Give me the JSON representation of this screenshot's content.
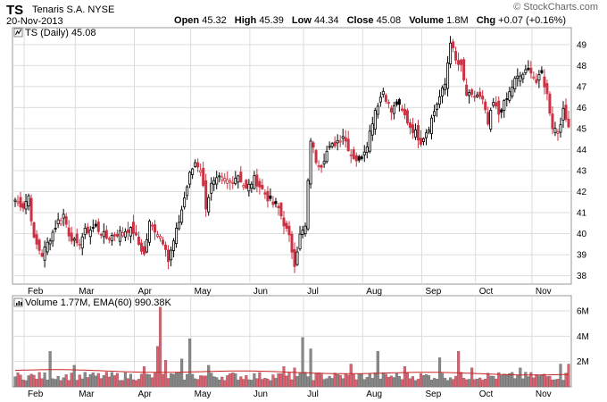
{
  "header": {
    "symbol": "TS",
    "company": "Tenaris S.A. NYSE",
    "date": "20-Nov-2013",
    "logo": "© StockCharts.com",
    "open_label": "Open",
    "open": "45.32",
    "high_label": "High",
    "high": "45.39",
    "low_label": "Low",
    "low": "44.34",
    "close_label": "Close",
    "close": "45.08",
    "volume_label": "Volume",
    "volume": "1.8M",
    "chg_label": "Chg",
    "chg": "+0.07 (+0.16%)"
  },
  "price_legend": "TS (Daily) 45.08",
  "volume_legend": "Volume 1.77M, EMA(60) 990.38K",
  "colors": {
    "up": "#000000",
    "down": "#cc3344",
    "vol_up": "#888888",
    "vol_down": "#e06070",
    "ema": "#cc2222",
    "grid": "#dddddd"
  },
  "chart_data": [
    {
      "type": "candlestick",
      "title": "TS (Daily) 45.08",
      "ylim": [
        37.6,
        49.8
      ],
      "y_ticks": [
        38,
        39,
        40,
        41,
        42,
        43,
        44,
        45,
        46,
        47,
        48,
        49
      ],
      "month_labels": [
        "Feb",
        "Mar",
        "Apr",
        "May",
        "Jun",
        "Jul",
        "Aug",
        "Sep",
        "Oct",
        "Nov"
      ],
      "month_start_index": [
        6,
        25,
        47,
        68,
        90,
        110,
        132,
        154,
        174,
        195
      ],
      "last_close": 45.08,
      "anchors": [
        [
          0,
          41.6
        ],
        [
          3,
          41.3
        ],
        [
          5,
          41.8
        ],
        [
          7,
          39.7
        ],
        [
          10,
          39.0
        ],
        [
          13,
          39.8
        ],
        [
          16,
          40.6
        ],
        [
          18,
          40.9
        ],
        [
          20,
          40.0
        ],
        [
          23,
          39.4
        ],
        [
          26,
          40.1
        ],
        [
          30,
          40.3
        ],
        [
          34,
          39.8
        ],
        [
          38,
          40.0
        ],
        [
          42,
          40.2
        ],
        [
          44,
          40.1
        ],
        [
          46,
          39.5
        ],
        [
          48,
          39.0
        ],
        [
          50,
          40.5
        ],
        [
          52,
          40.2
        ],
        [
          54,
          39.9
        ],
        [
          56,
          39.4
        ],
        [
          57,
          38.7
        ],
        [
          59,
          39.6
        ],
        [
          61,
          40.6
        ],
        [
          63,
          41.7
        ],
        [
          65,
          42.8
        ],
        [
          67,
          43.4
        ],
        [
          69,
          43.1
        ],
        [
          71,
          41.3
        ],
        [
          73,
          42.3
        ],
        [
          76,
          42.6
        ],
        [
          80,
          42.5
        ],
        [
          83,
          42.8
        ],
        [
          86,
          42.1
        ],
        [
          89,
          42.6
        ],
        [
          92,
          42.1
        ],
        [
          95,
          41.5
        ],
        [
          98,
          41.2
        ],
        [
          100,
          40.5
        ],
        [
          102,
          39.8
        ],
        [
          104,
          38.6
        ],
        [
          106,
          39.9
        ],
        [
          108,
          40.3
        ],
        [
          110,
          44.5
        ],
        [
          112,
          43.5
        ],
        [
          114,
          43.3
        ],
        [
          116,
          43.9
        ],
        [
          119,
          44.3
        ],
        [
          122,
          44.7
        ],
        [
          125,
          43.8
        ],
        [
          128,
          43.4
        ],
        [
          131,
          44.3
        ],
        [
          134,
          45.9
        ],
        [
          137,
          46.8
        ],
        [
          140,
          45.8
        ],
        [
          142,
          46.2
        ],
        [
          145,
          45.6
        ],
        [
          147,
          45.1
        ],
        [
          149,
          44.8
        ],
        [
          151,
          44.4
        ],
        [
          154,
          45.1
        ],
        [
          157,
          46.2
        ],
        [
          160,
          47.1
        ],
        [
          162,
          49.2
        ],
        [
          164,
          48.2
        ],
        [
          166,
          47.9
        ],
        [
          168,
          46.6
        ],
        [
          170,
          46.5
        ],
        [
          172,
          46.6
        ],
        [
          174,
          46.3
        ],
        [
          176,
          45.2
        ],
        [
          178,
          46.2
        ],
        [
          180,
          45.7
        ],
        [
          183,
          46.4
        ],
        [
          186,
          47.3
        ],
        [
          189,
          47.6
        ],
        [
          192,
          47.8
        ],
        [
          194,
          47.2
        ],
        [
          196,
          47.6
        ],
        [
          198,
          46.6
        ],
        [
          200,
          45.1
        ],
        [
          202,
          44.9
        ],
        [
          204,
          45.8
        ],
        [
          206,
          45.08
        ]
      ]
    },
    {
      "type": "bar",
      "title": "Volume 1.77M, EMA(60) 990.38K",
      "ylim": [
        0,
        7.2
      ],
      "y_ticks_labels": [
        "2M",
        "4M",
        "6M"
      ],
      "y_ticks": [
        2,
        4,
        6
      ],
      "month_labels": [
        "Feb",
        "Mar",
        "Apr",
        "May",
        "Jun",
        "Jul",
        "Aug",
        "Sep",
        "Oct",
        "Nov"
      ],
      "base_volume_m": 0.9,
      "spikes": [
        [
          13,
          2.8
        ],
        [
          22,
          1.7
        ],
        [
          48,
          1.6
        ],
        [
          53,
          3.2
        ],
        [
          54,
          6.3
        ],
        [
          56,
          2.1
        ],
        [
          62,
          2.2
        ],
        [
          65,
          3.8
        ],
        [
          72,
          1.7
        ],
        [
          100,
          1.6
        ],
        [
          104,
          1.5
        ],
        [
          107,
          3.9
        ],
        [
          110,
          3.0
        ],
        [
          125,
          1.8
        ],
        [
          135,
          2.8
        ],
        [
          145,
          1.6
        ],
        [
          158,
          2.3
        ],
        [
          165,
          2.8
        ],
        [
          170,
          1.5
        ],
        [
          188,
          1.5
        ],
        [
          203,
          1.8
        ],
        [
          206,
          1.8
        ]
      ],
      "ema_start_m": 1.3,
      "ema_end_m": 0.99
    }
  ]
}
